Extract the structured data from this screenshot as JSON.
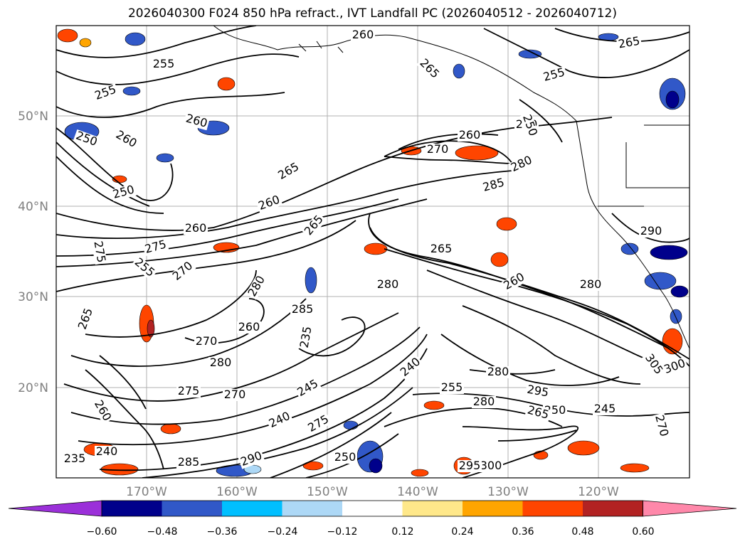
{
  "title": "2026040300 F024 850 hPa refract., IVT Landfall PC (2026040512 - 2026040712)",
  "lat_labels": [
    "50°N",
    "40°N",
    "30°N",
    "20°N"
  ],
  "lon_labels": [
    "170°W",
    "160°W",
    "150°W",
    "140°W",
    "130°W",
    "120°W"
  ],
  "contour_labels": [
    "260",
    "265",
    "255",
    "260",
    "260",
    "265",
    "255",
    "250",
    "265",
    "260",
    "255",
    "250",
    "265",
    "260",
    "275",
    "275",
    "255",
    "270",
    "280",
    "285",
    "280",
    "265",
    "270",
    "260",
    "280",
    "240",
    "235",
    "270",
    "275",
    "280",
    "255",
    "280",
    "260",
    "280",
    "290",
    "305",
    "300",
    "295",
    "250",
    "245",
    "270",
    "260",
    "240",
    "235",
    "285",
    "290",
    "275",
    "240",
    "250",
    "245",
    "300",
    "295",
    "265",
    "260",
    "260",
    "270",
    "280",
    "285",
    "250",
    "265"
  ],
  "colorbar": {
    "ticks": [
      "−0.60",
      "−0.48",
      "−0.36",
      "−0.24",
      "−0.12",
      "0.12",
      "0.24",
      "0.36",
      "0.48",
      "0.60"
    ],
    "colors": [
      "#9b30d9",
      "#00008b",
      "#3158c8",
      "#00bfff",
      "#add8f6",
      "#ffffff",
      "#ffe88a",
      "#ffa500",
      "#ff4500",
      "#b22222",
      "#ff88aa"
    ]
  },
  "map_features": [
    "coastlines",
    "lat-lon gridlines",
    "850 hPa refractivity contours",
    "IVT landfall PC shading"
  ]
}
